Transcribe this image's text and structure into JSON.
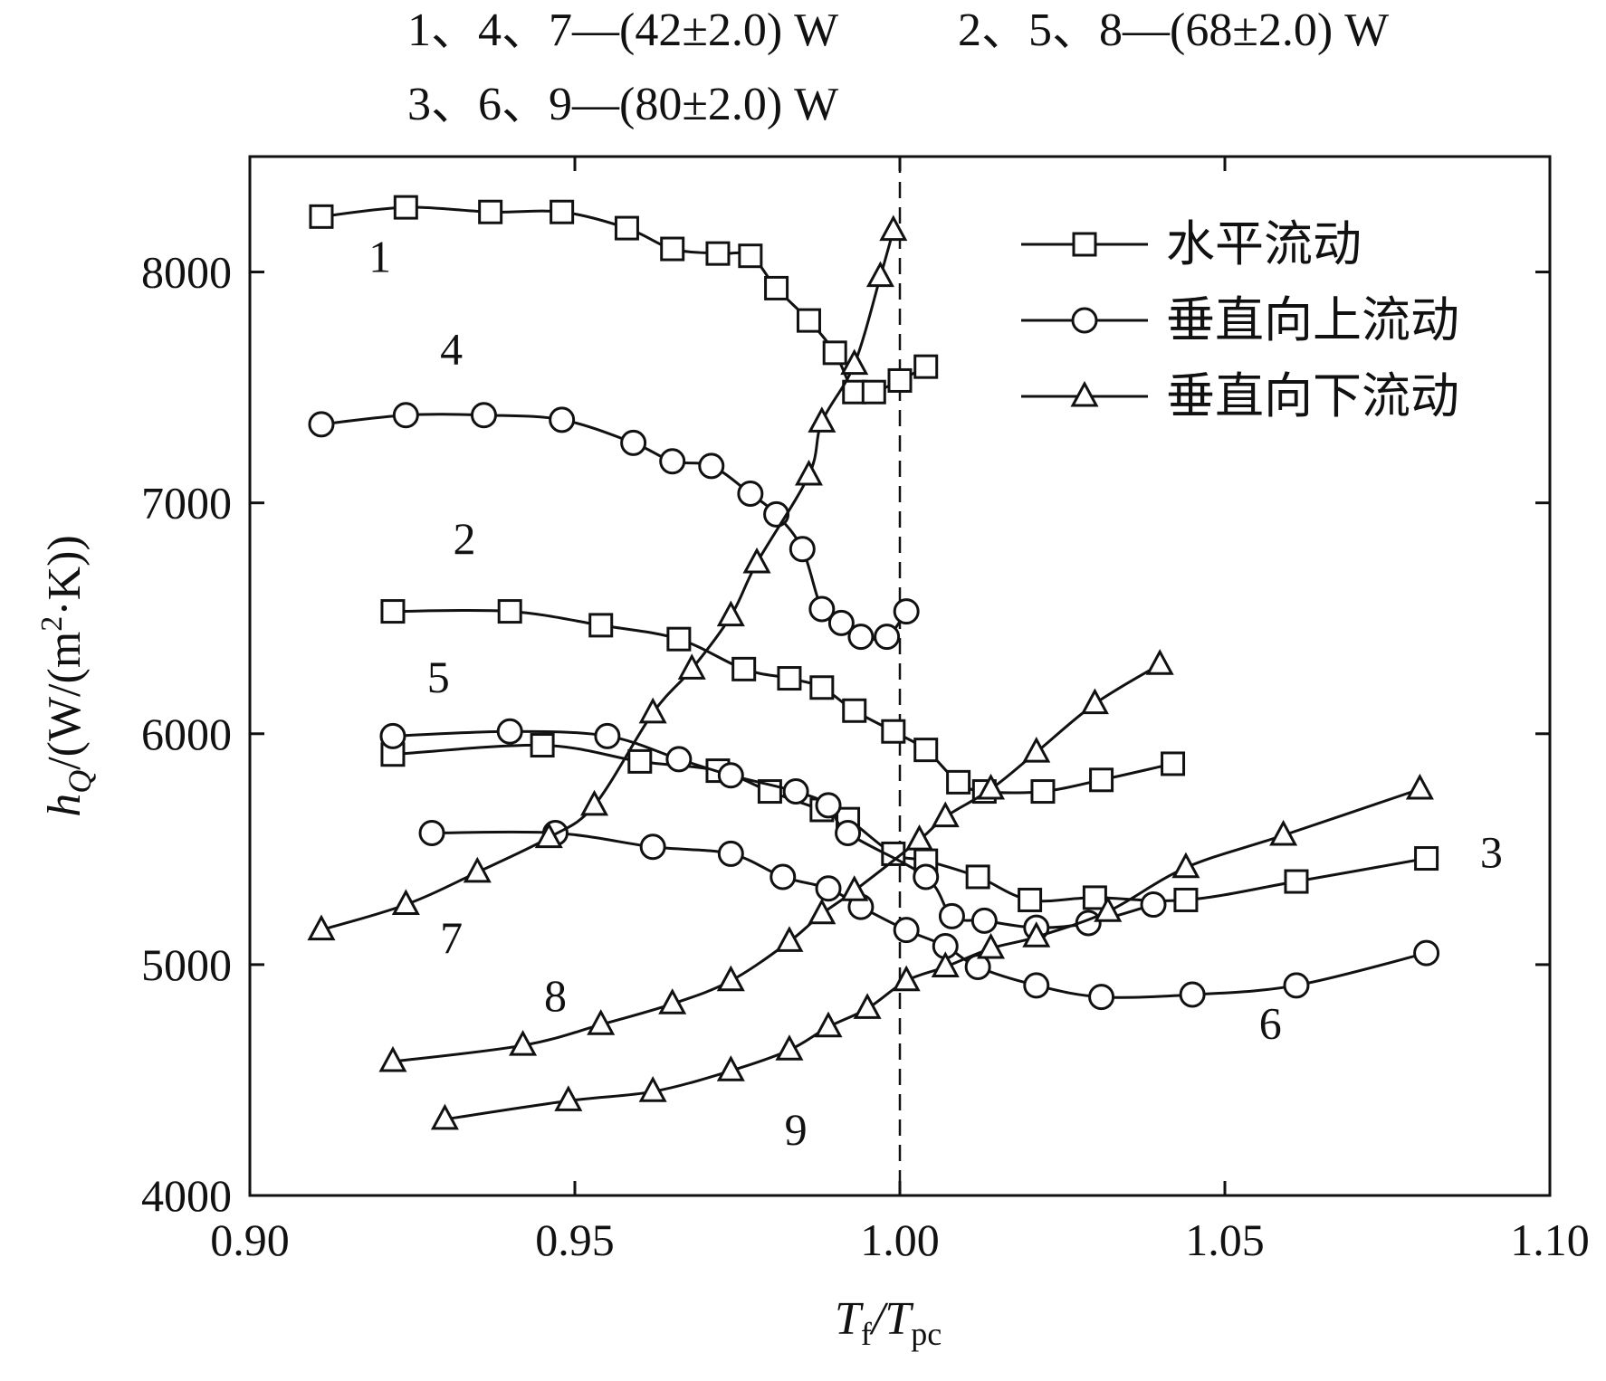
{
  "chart_data": {
    "type": "line",
    "title": "",
    "conditions": [
      "1、4、7—(42±2.0) W",
      "2、5、8—(68±2.0) W",
      "3、6、9—(80±2.0) W"
    ],
    "xlabel": {
      "main": "T",
      "sub1": "f",
      "sep": "/T",
      "sub2": "pc"
    },
    "ylabel": {
      "main": "h",
      "sub": "Q",
      "rest": "/(W/(m",
      "sup": "2",
      "end": "·K))"
    },
    "xlim": [
      0.9,
      1.1
    ],
    "ylim": [
      4000,
      8500
    ],
    "xticks": [
      0.9,
      0.95,
      1.0,
      1.05,
      1.1
    ],
    "xtick_labels": [
      "0.90",
      "0.95",
      "1.00",
      "1.05",
      "1.10"
    ],
    "yticks": [
      4000,
      5000,
      6000,
      7000,
      8000
    ],
    "ytick_labels": [
      "4000",
      "5000",
      "6000",
      "7000",
      "8000"
    ],
    "reference_line_x": 1.0,
    "grid": false,
    "legend_position": "top-right",
    "legend": [
      {
        "marker": "square",
        "label": "水平流动"
      },
      {
        "marker": "circle",
        "label": "垂直向上流动"
      },
      {
        "marker": "triangle",
        "label": "垂直向下流动"
      }
    ],
    "series": [
      {
        "name": "1",
        "marker": "square",
        "x": [
          0.911,
          0.924,
          0.937,
          0.948,
          0.958,
          0.965,
          0.972,
          0.977,
          0.981,
          0.986,
          0.99,
          0.993,
          0.996,
          1.0,
          1.004
        ],
        "y": [
          8240,
          8280,
          8260,
          8260,
          8190,
          8100,
          8080,
          8070,
          7930,
          7790,
          7650,
          7480,
          7480,
          7530,
          7590
        ],
        "label_pos": [
          0.92,
          8000
        ]
      },
      {
        "name": "2",
        "marker": "square",
        "x": [
          0.922,
          0.94,
          0.954,
          0.966,
          0.976,
          0.983,
          0.988,
          0.993,
          0.999,
          1.004,
          1.009,
          1.013,
          1.022,
          1.031,
          1.042
        ],
        "y": [
          6530,
          6530,
          6470,
          6410,
          6280,
          6240,
          6200,
          6100,
          6010,
          5930,
          5790,
          5750,
          5750,
          5800,
          5870
        ],
        "label_pos": [
          0.933,
          6780
        ]
      },
      {
        "name": "3",
        "marker": "square",
        "x": [
          0.922,
          0.945,
          0.96,
          0.972,
          0.98,
          0.988,
          0.992,
          0.999,
          1.004,
          1.012,
          1.02,
          1.03,
          1.044,
          1.061,
          1.081
        ],
        "y": [
          5910,
          5950,
          5880,
          5840,
          5750,
          5670,
          5630,
          5480,
          5450,
          5380,
          5280,
          5290,
          5280,
          5360,
          5460
        ],
        "label_pos": [
          1.091,
          5420
        ]
      },
      {
        "name": "4",
        "marker": "circle",
        "x": [
          0.911,
          0.924,
          0.936,
          0.948,
          0.959,
          0.965,
          0.971,
          0.977,
          0.981,
          0.985,
          0.988,
          0.991,
          0.994,
          0.998,
          1.001
        ],
        "y": [
          7340,
          7380,
          7380,
          7360,
          7260,
          7180,
          7160,
          7040,
          6950,
          6800,
          6540,
          6480,
          6420,
          6420,
          6530
        ],
        "label_pos": [
          0.931,
          7600
        ]
      },
      {
        "name": "5",
        "marker": "circle",
        "x": [
          0.922,
          0.94,
          0.955,
          0.966,
          0.974,
          0.984,
          0.989,
          0.992,
          1.004,
          1.008,
          1.013,
          1.021,
          1.029,
          1.039
        ],
        "y": [
          5990,
          6010,
          5990,
          5890,
          5820,
          5750,
          5690,
          5570,
          5380,
          5210,
          5190,
          5160,
          5180,
          5260
        ],
        "label_pos": [
          0.929,
          6180
        ]
      },
      {
        "name": "6",
        "marker": "circle",
        "x": [
          0.928,
          0.947,
          0.962,
          0.974,
          0.982,
          0.989,
          0.994,
          1.001,
          1.007,
          1.012,
          1.021,
          1.031,
          1.045,
          1.061,
          1.081
        ],
        "y": [
          5570,
          5570,
          5510,
          5480,
          5380,
          5330,
          5250,
          5150,
          5080,
          4990,
          4910,
          4860,
          4870,
          4910,
          5050
        ],
        "label_pos": [
          1.057,
          4680
        ]
      },
      {
        "name": "7",
        "marker": "triangle",
        "x": [
          0.911,
          0.924,
          0.935,
          0.946,
          0.953,
          0.962,
          0.968,
          0.974,
          0.978,
          0.986,
          0.988,
          0.993,
          0.997,
          0.999
        ],
        "y": [
          5150,
          5260,
          5400,
          5550,
          5690,
          6090,
          6280,
          6510,
          6740,
          7120,
          7350,
          7600,
          7980,
          8180
        ],
        "label_pos": [
          0.931,
          5050
        ]
      },
      {
        "name": "8",
        "marker": "triangle",
        "x": [
          0.922,
          0.942,
          0.954,
          0.965,
          0.974,
          0.983,
          0.988,
          0.993,
          1.003,
          1.007,
          1.014,
          1.021,
          1.03,
          1.04
        ],
        "y": [
          4580,
          4650,
          4740,
          4830,
          4930,
          5100,
          5220,
          5320,
          5540,
          5640,
          5760,
          5920,
          6130,
          6300
        ],
        "label_pos": [
          0.947,
          4800
        ]
      },
      {
        "name": "9",
        "marker": "triangle",
        "x": [
          0.93,
          0.949,
          0.962,
          0.974,
          0.983,
          0.989,
          0.995,
          1.001,
          1.007,
          1.014,
          1.021,
          1.032,
          1.044,
          1.059,
          1.08
        ],
        "y": [
          4330,
          4410,
          4450,
          4540,
          4630,
          4730,
          4810,
          4930,
          4990,
          5070,
          5120,
          5230,
          5420,
          5560,
          5760
        ],
        "label_pos": [
          0.984,
          4220
        ]
      }
    ]
  }
}
